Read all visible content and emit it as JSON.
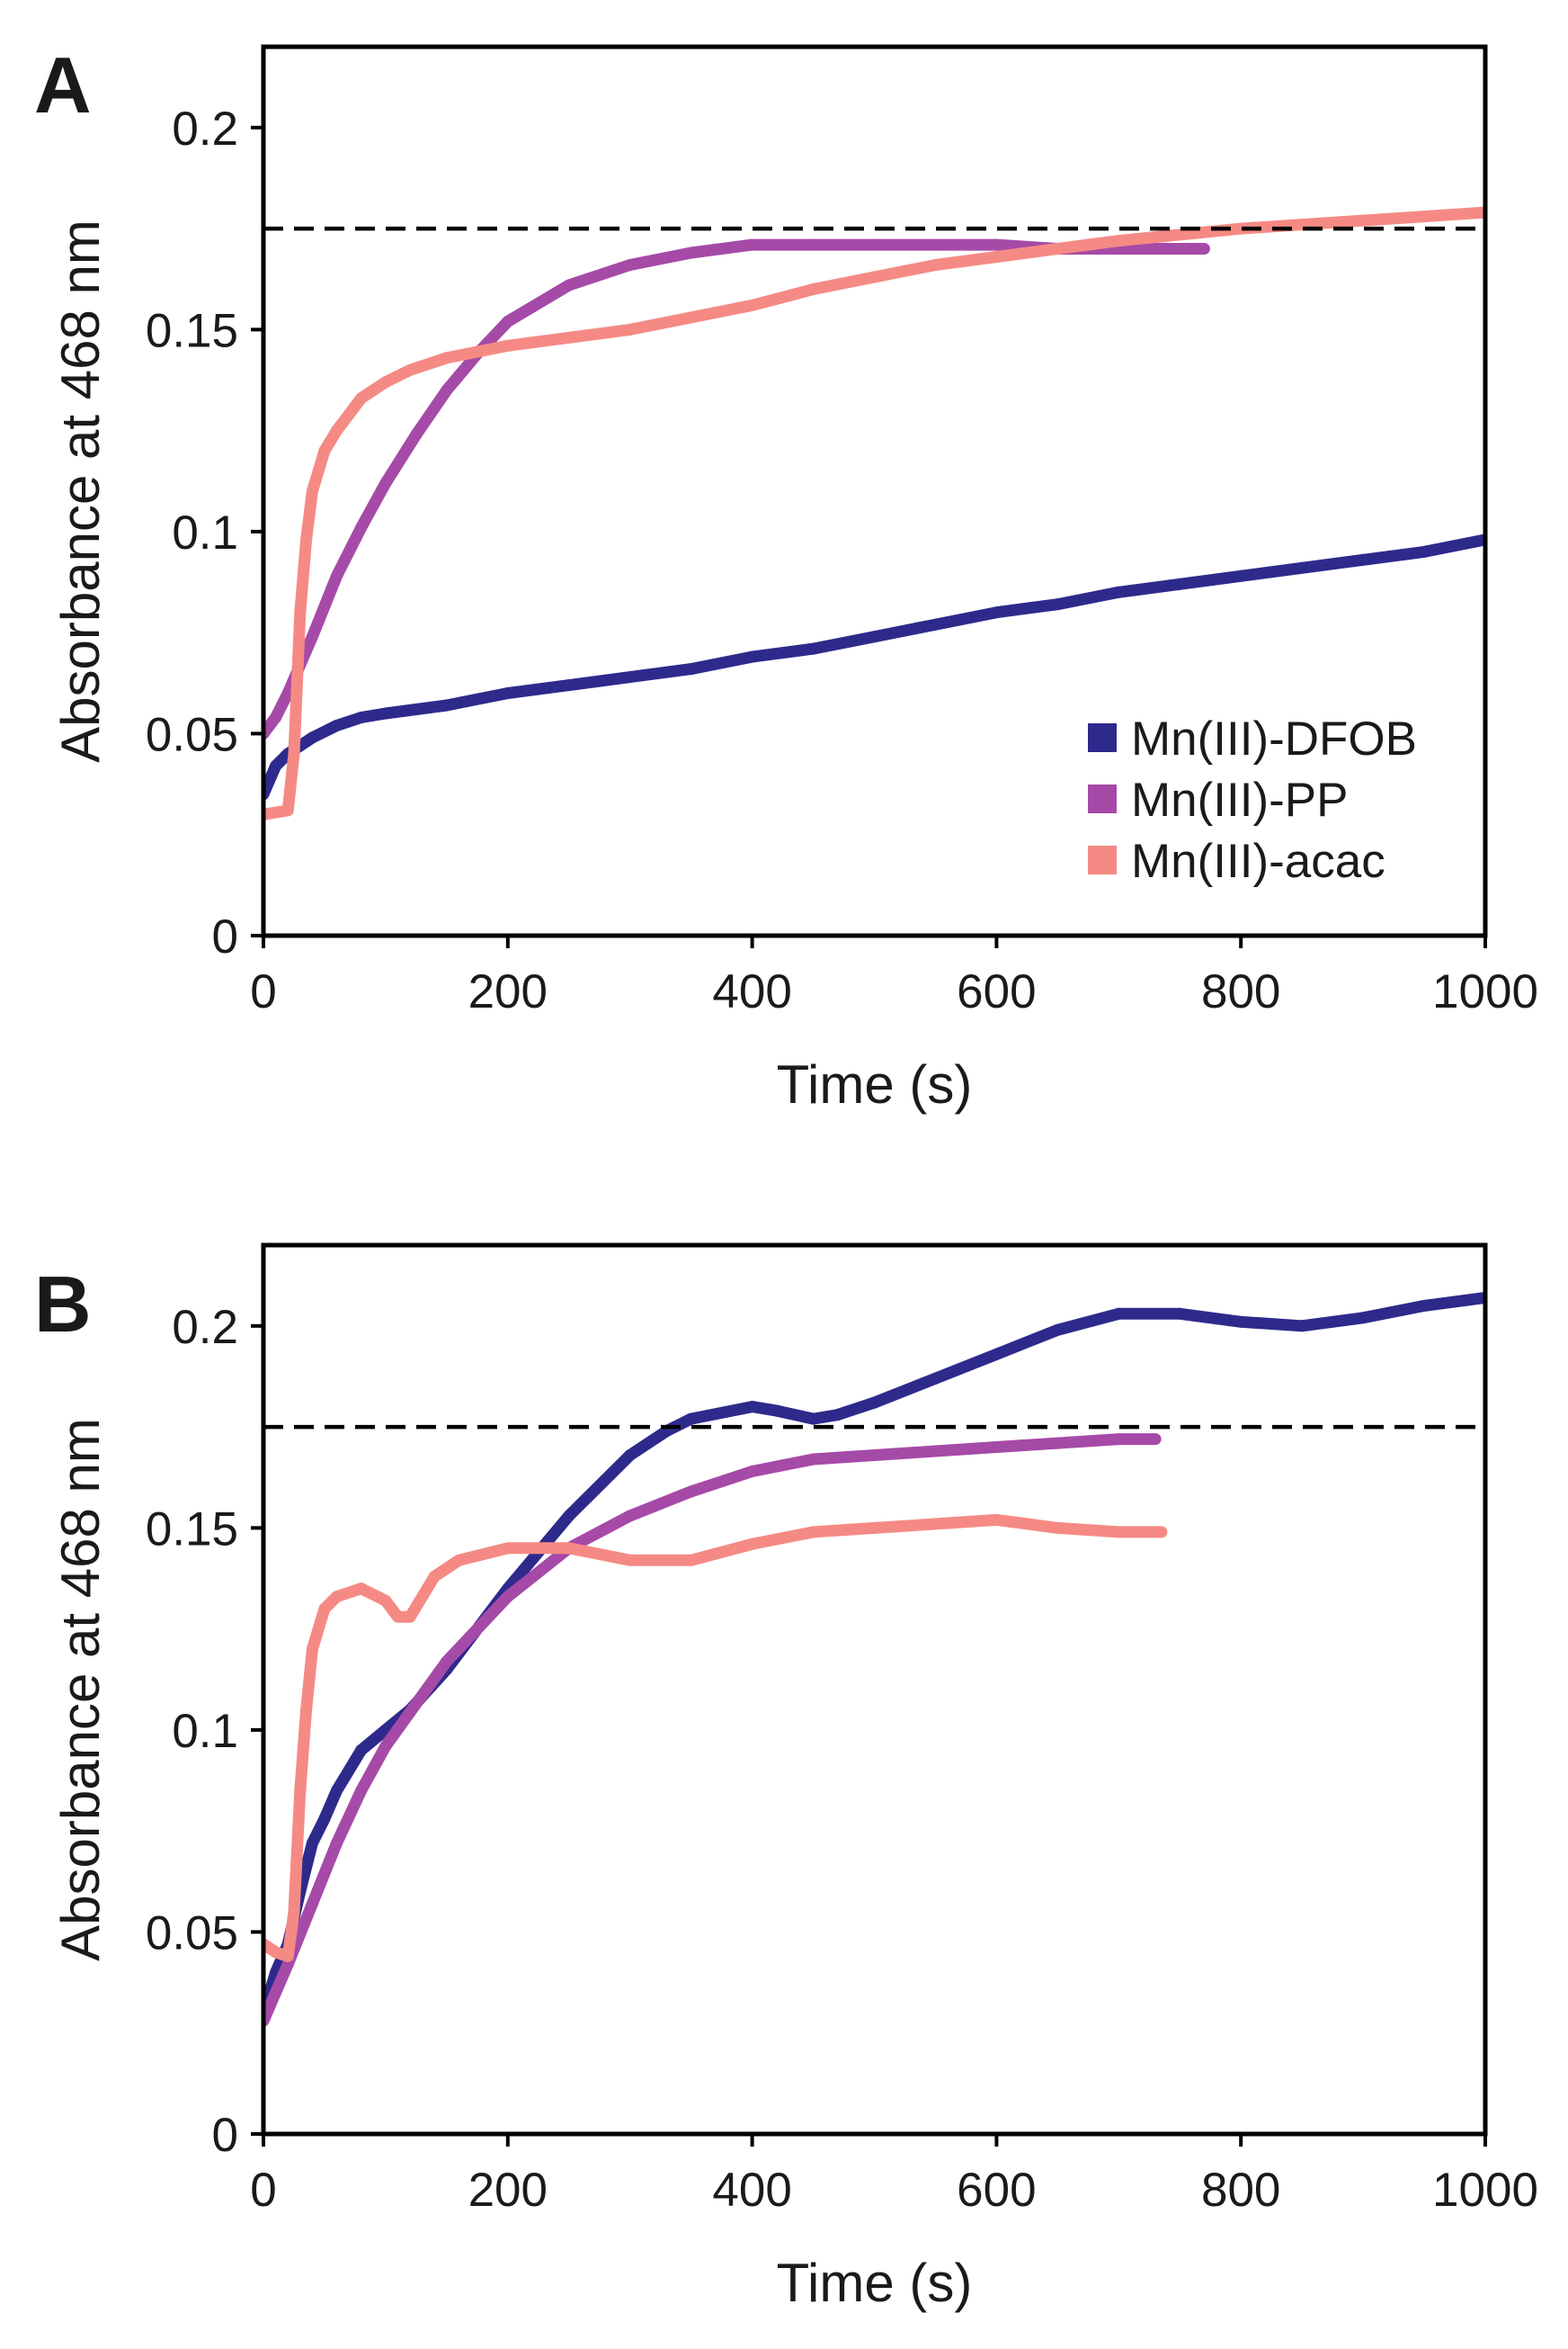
{
  "chart_data": [
    {
      "type": "scatter",
      "panel": "A",
      "title": "",
      "xlabel": "Time (s)",
      "ylabel": "Absorbance at 468 nm",
      "xlim": [
        0,
        1000
      ],
      "ylim": [
        0,
        0.22
      ],
      "xticks": [
        0,
        200,
        400,
        600,
        800,
        1000
      ],
      "yticks": [
        0,
        0.05,
        0.1,
        0.15,
        0.2
      ],
      "ytick_labels": [
        "0",
        "0.05",
        "0.1",
        "0.15",
        "0.2"
      ],
      "grid": false,
      "legend": "bottom-right",
      "reference_line": {
        "y": 0.175,
        "style": "dashed",
        "color": "#000000"
      },
      "series": [
        {
          "name": "Mn(III)-DFOB",
          "color": "#2e2a8c",
          "x": [
            0,
            10,
            20,
            40,
            60,
            80,
            100,
            150,
            200,
            250,
            300,
            350,
            400,
            450,
            500,
            550,
            600,
            650,
            700,
            750,
            800,
            850,
            900,
            950,
            1000
          ],
          "y": [
            0.035,
            0.042,
            0.045,
            0.049,
            0.052,
            0.054,
            0.055,
            0.057,
            0.06,
            0.062,
            0.064,
            0.066,
            0.069,
            0.071,
            0.074,
            0.077,
            0.08,
            0.082,
            0.085,
            0.087,
            0.089,
            0.091,
            0.093,
            0.095,
            0.098
          ]
        },
        {
          "name": "Mn(III)-PP",
          "color": "#a64aa8",
          "x": [
            0,
            10,
            20,
            40,
            60,
            80,
            100,
            125,
            150,
            175,
            200,
            250,
            300,
            350,
            400,
            450,
            500,
            550,
            600,
            650,
            700,
            770
          ],
          "y": [
            0.05,
            0.054,
            0.06,
            0.074,
            0.089,
            0.101,
            0.112,
            0.124,
            0.135,
            0.144,
            0.152,
            0.161,
            0.166,
            0.169,
            0.171,
            0.171,
            0.171,
            0.171,
            0.171,
            0.17,
            0.17,
            0.17
          ]
        },
        {
          "name": "Mn(III)-acac",
          "color": "#f58a84",
          "x": [
            0,
            20,
            25,
            30,
            35,
            40,
            45,
            50,
            60,
            70,
            80,
            100,
            120,
            150,
            200,
            250,
            300,
            350,
            400,
            450,
            500,
            550,
            600,
            650,
            700,
            800,
            900,
            1000
          ],
          "y": [
            0.03,
            0.031,
            0.045,
            0.08,
            0.098,
            0.11,
            0.115,
            0.12,
            0.125,
            0.129,
            0.133,
            0.137,
            0.14,
            0.143,
            0.146,
            0.148,
            0.15,
            0.153,
            0.156,
            0.16,
            0.163,
            0.166,
            0.168,
            0.17,
            0.172,
            0.175,
            0.177,
            0.179
          ]
        }
      ]
    },
    {
      "type": "scatter",
      "panel": "B",
      "title": "",
      "xlabel": "Time (s)",
      "ylabel": "Absorbance at 468 nm",
      "xlim": [
        0,
        1000
      ],
      "ylim": [
        0,
        0.22
      ],
      "xticks": [
        0,
        200,
        400,
        600,
        800,
        1000
      ],
      "yticks": [
        0,
        0.05,
        0.1,
        0.15,
        0.2
      ],
      "ytick_labels": [
        "0",
        "0.05",
        "0.1",
        "0.15",
        "0.2"
      ],
      "grid": false,
      "legend": "none",
      "reference_line": {
        "y": 0.175,
        "style": "dashed",
        "color": "#000000"
      },
      "series": [
        {
          "name": "Mn(III)-DFOB",
          "color": "#2e2a8c",
          "x": [
            0,
            10,
            20,
            30,
            40,
            50,
            60,
            80,
            100,
            120,
            150,
            200,
            250,
            300,
            330,
            350,
            400,
            420,
            450,
            470,
            500,
            550,
            600,
            650,
            700,
            750,
            800,
            850,
            900,
            950,
            1000
          ],
          "y": [
            0.03,
            0.04,
            0.047,
            0.06,
            0.072,
            0.078,
            0.085,
            0.095,
            0.1,
            0.105,
            0.115,
            0.135,
            0.153,
            0.168,
            0.174,
            0.177,
            0.18,
            0.179,
            0.177,
            0.178,
            0.181,
            0.187,
            0.193,
            0.199,
            0.203,
            0.203,
            0.201,
            0.2,
            0.202,
            0.205,
            0.207
          ]
        },
        {
          "name": "Mn(III)-PP",
          "color": "#a64aa8",
          "x": [
            0,
            10,
            20,
            40,
            60,
            80,
            100,
            150,
            200,
            250,
            300,
            350,
            400,
            450,
            500,
            550,
            600,
            650,
            700,
            730
          ],
          "y": [
            0.028,
            0.035,
            0.042,
            0.057,
            0.072,
            0.085,
            0.096,
            0.117,
            0.133,
            0.145,
            0.153,
            0.159,
            0.164,
            0.167,
            0.168,
            0.169,
            0.17,
            0.171,
            0.172,
            0.172
          ]
        },
        {
          "name": "Mn(III)-acac",
          "color": "#f58a84",
          "x": [
            0,
            10,
            20,
            25,
            30,
            35,
            40,
            50,
            60,
            80,
            100,
            110,
            120,
            130,
            140,
            160,
            200,
            250,
            300,
            350,
            400,
            450,
            500,
            550,
            600,
            650,
            700,
            735
          ],
          "y": [
            0.047,
            0.045,
            0.044,
            0.055,
            0.085,
            0.105,
            0.12,
            0.13,
            0.133,
            0.135,
            0.132,
            0.128,
            0.128,
            0.133,
            0.138,
            0.142,
            0.145,
            0.145,
            0.142,
            0.142,
            0.146,
            0.149,
            0.15,
            0.151,
            0.152,
            0.15,
            0.149,
            0.149
          ]
        }
      ]
    }
  ]
}
